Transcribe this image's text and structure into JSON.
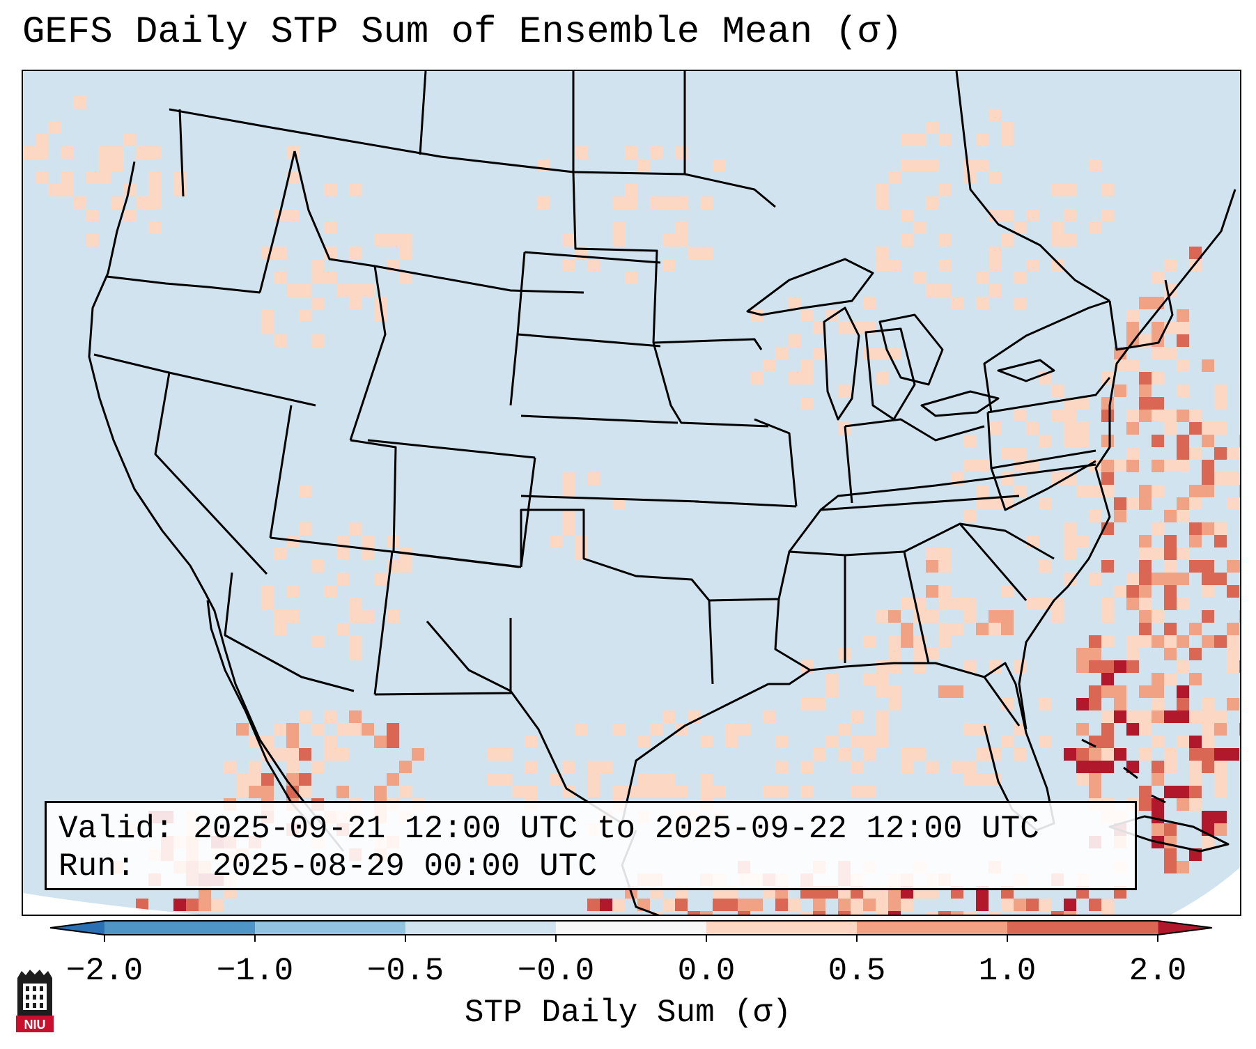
{
  "title": "GEFS Daily STP Sum of Ensemble Mean (σ)",
  "info": {
    "valid_label": "Valid:",
    "valid_value": "2025-09-21 12:00 UTC to 2025-09-22 12:00 UTC",
    "run_label": "Run:",
    "run_value": "2025-08-29 00:00 UTC"
  },
  "map": {
    "region": "Contiguous United States, Gulf of Mexico, northern Mexico, western Atlantic",
    "background_color": "#d0e3ef",
    "boundary_color": "#000000"
  },
  "colorbar": {
    "label": "STP Daily Sum (σ)",
    "ticks": [
      "−2.0",
      "−1.0",
      "−0.5",
      "−0.0",
      "0.0",
      "0.5",
      "1.0",
      "2.0"
    ],
    "bins": [
      {
        "from": -2.0,
        "to": -1.0,
        "color": "#4f95c6"
      },
      {
        "from": -1.0,
        "to": -0.5,
        "color": "#93c4df"
      },
      {
        "from": -0.5,
        "to": 0.0,
        "color": "#d0e3ef"
      },
      {
        "from": 0.0,
        "to": 0.0,
        "color": "#f7f7f7"
      },
      {
        "from": 0.0,
        "to": 0.5,
        "color": "#fbd7c4"
      },
      {
        "from": 0.5,
        "to": 1.0,
        "color": "#f1a284"
      },
      {
        "from": 1.0,
        "to": 2.0,
        "color": "#d96754"
      }
    ],
    "under_color": "#2a70b2",
    "over_color": "#b2182b",
    "extend": "both"
  },
  "logo": {
    "text": "NIU"
  }
}
